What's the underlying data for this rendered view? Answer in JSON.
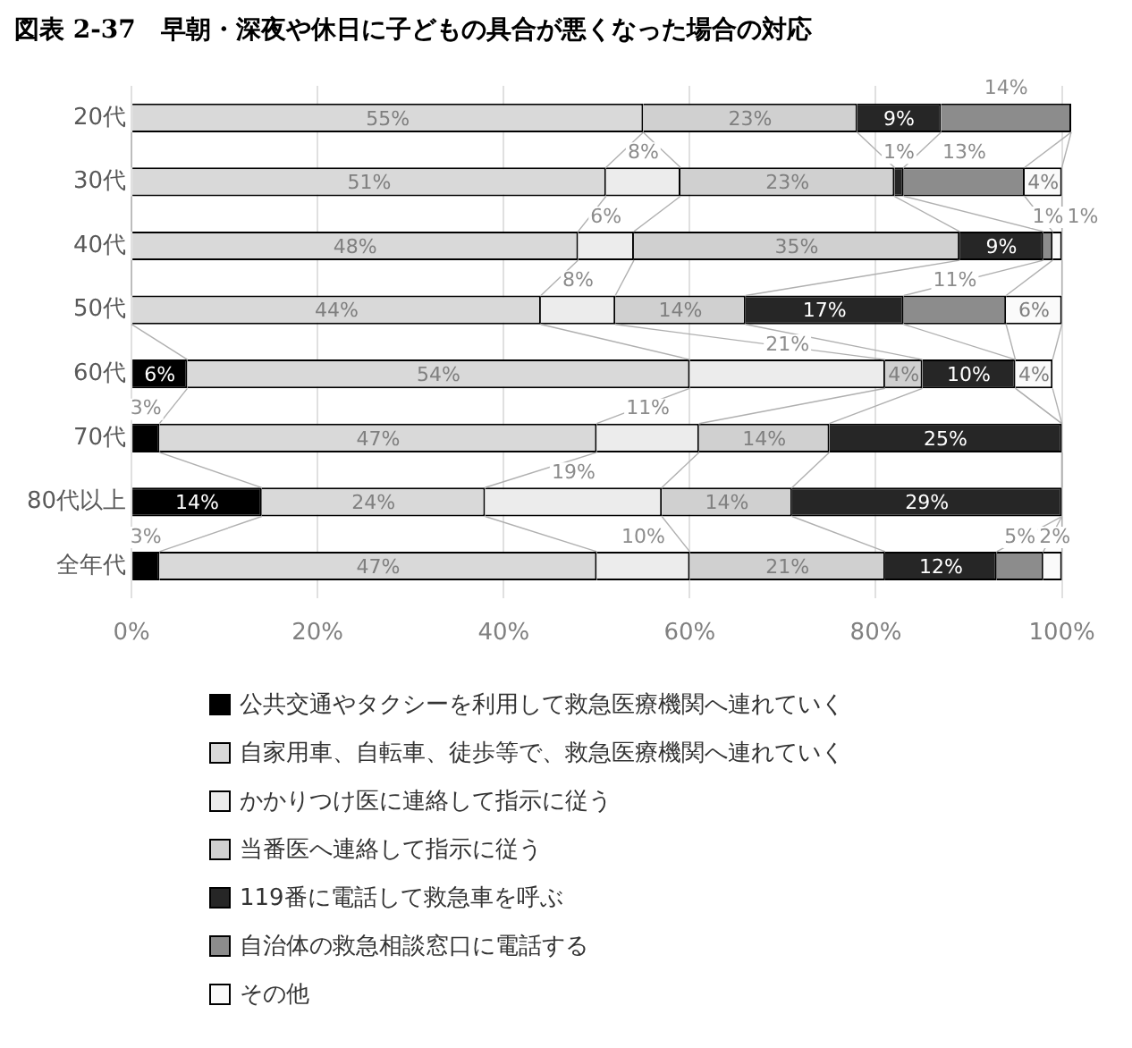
{
  "chart_data": {
    "type": "bar",
    "title": "図表 2-37　早朝・深夜や休日に子どもの具合が悪くなった場合の対応",
    "orientation": "horizontal",
    "stacked": true,
    "grid": "x",
    "legend": "bottom",
    "categories": [
      "20代",
      "30代",
      "40代",
      "50代",
      "60代",
      "70代",
      "80代以上",
      "全年代"
    ],
    "xlim": [
      0,
      101
    ],
    "xticks": [
      {
        "value": 0,
        "label": "0%"
      },
      {
        "value": 20,
        "label": "20%"
      },
      {
        "value": 40,
        "label": "40%"
      },
      {
        "value": 60,
        "label": "60%"
      },
      {
        "value": 80,
        "label": "80%"
      },
      {
        "value": 100,
        "label": "100%"
      }
    ],
    "series": [
      {
        "name": "公共交通やタクシーを利用して救急医療機関へ連れていく",
        "color": "#000000",
        "values": [
          null,
          null,
          null,
          null,
          6,
          3,
          14,
          3
        ],
        "value_labels": [
          null,
          null,
          null,
          null,
          "6%",
          "3%",
          "14%",
          "3%"
        ]
      },
      {
        "name": "自家用車、自転車、徒歩等で、救急医療機関へ連れていく",
        "color": "#d9d9d9",
        "values": [
          55,
          51,
          48,
          44,
          54,
          47,
          24,
          47
        ],
        "value_labels": [
          "55%",
          "51%",
          "48%",
          "44%",
          "54%",
          "47%",
          "24%",
          "47%"
        ]
      },
      {
        "name": "かかりつけ医に連絡して指示に従う",
        "color": "#ececec",
        "values": [
          null,
          8,
          6,
          8,
          21,
          11,
          19,
          10
        ],
        "value_labels": [
          null,
          "8%",
          "6%",
          "8%",
          "21%",
          "11%",
          "19%",
          "10%"
        ]
      },
      {
        "name": "当番医へ連絡して指示に従う",
        "color": "#d0d0d0",
        "values": [
          23,
          23,
          35,
          14,
          4,
          14,
          14,
          21
        ],
        "value_labels": [
          "23%",
          "23%",
          "35%",
          "14%",
          "4%",
          "14%",
          "14%",
          "21%"
        ]
      },
      {
        "name": "119番に電話して救急車を呼ぶ",
        "color": "#262626",
        "values": [
          9,
          1,
          9,
          17,
          10,
          25,
          29,
          12
        ],
        "value_labels": [
          "9%",
          "1%",
          "9%",
          "17%",
          "10%",
          "25%",
          "29%",
          "12%"
        ]
      },
      {
        "name": "自治体の救急相談窓口に電話する",
        "color": "#8c8c8c",
        "values": [
          14,
          13,
          1,
          11,
          null,
          null,
          null,
          5
        ],
        "value_labels": [
          "14%",
          "13%",
          "1%",
          "11%",
          null,
          null,
          null,
          "5%"
        ]
      },
      {
        "name": "その他",
        "color": "#fafafa",
        "values": [
          null,
          4,
          1,
          6,
          4,
          null,
          null,
          2
        ],
        "value_labels": [
          null,
          "4%",
          "1%",
          "6%",
          "4%",
          null,
          null,
          "2%"
        ]
      }
    ]
  }
}
